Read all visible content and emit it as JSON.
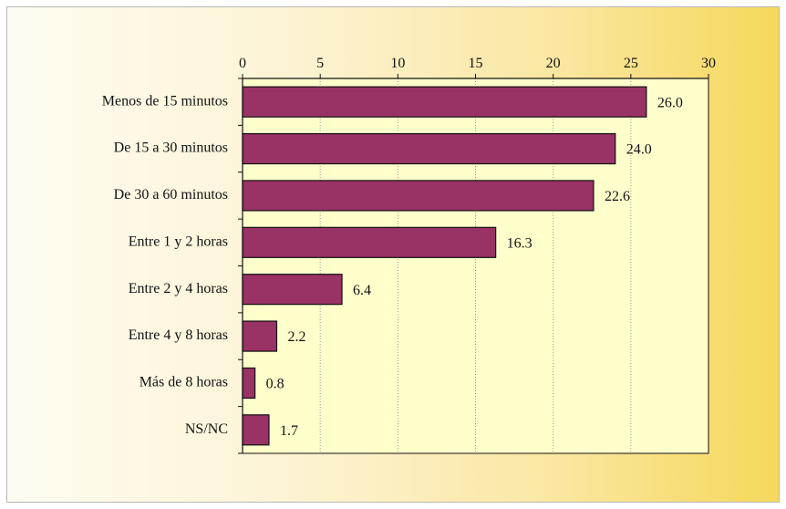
{
  "chart_data": {
    "type": "bar",
    "orientation": "horizontal",
    "categories": [
      "Menos de 15 minutos",
      "De 15 a 30 minutos",
      "De 30 a 60 minutos",
      "Entre 1 y 2 horas",
      "Entre 2 y 4 horas",
      "Entre 4 y 8 horas",
      "Más de 8 horas",
      "NS/NC"
    ],
    "values": [
      26.0,
      24.0,
      22.6,
      16.3,
      6.4,
      2.2,
      0.8,
      1.7
    ],
    "value_labels": [
      "26.0",
      "24.0",
      "22.6",
      "16.3",
      "6.4",
      "2.2",
      "0.8",
      "1.7"
    ],
    "xlim": [
      0,
      30
    ],
    "xticks": [
      0,
      5,
      10,
      15,
      20,
      25,
      30
    ],
    "xtick_labels": [
      "0",
      "5",
      "10",
      "15",
      "20",
      "25",
      "30"
    ],
    "xaxis_position": "top",
    "grid": "vertical dotted",
    "title": "",
    "xlabel": "",
    "ylabel": ""
  },
  "colors": {
    "bar_fill": "#993366",
    "bar_stroke": "#111111",
    "plot_background": "#ffffcc",
    "grid": "#9a9a9a"
  }
}
